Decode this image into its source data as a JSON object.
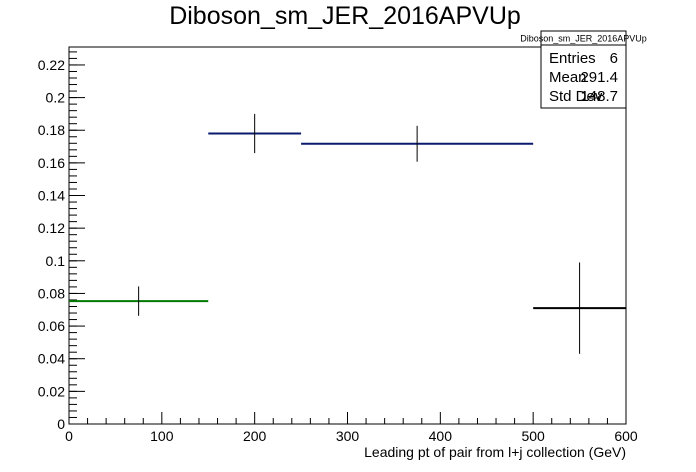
{
  "chart_data": {
    "type": "histogram",
    "title": "Diboson_sm_JER_2016APVUp",
    "xlabel": "Leading pt of pair from l+j collection (GeV)",
    "ylabel": "",
    "xlim": [
      0,
      600
    ],
    "ylim": [
      0,
      0.231
    ],
    "x_ticks": [
      0,
      100,
      200,
      300,
      400,
      500,
      600
    ],
    "y_ticks": [
      0,
      0.02,
      0.04,
      0.06,
      0.08,
      0.1,
      0.12,
      0.14,
      0.16,
      0.18,
      0.2,
      0.22
    ],
    "x_tick_labels": [
      "0",
      "100",
      "200",
      "300",
      "400",
      "500",
      "600"
    ],
    "y_tick_labels": [
      "0",
      "0.02",
      "0.04",
      "0.06",
      "0.08",
      "0.1",
      "0.12",
      "0.14",
      "0.16",
      "0.18",
      "0.2",
      "0.22"
    ],
    "bins": [
      {
        "x_low": 0,
        "x_high": 150,
        "value": 0.0753,
        "error": 0.009,
        "color": "#007a00"
      },
      {
        "x_low": 150,
        "x_high": 250,
        "value": 0.178,
        "error": 0.012,
        "color": "#0a1a6e"
      },
      {
        "x_low": 250,
        "x_high": 500,
        "value": 0.1717,
        "error": 0.011,
        "color": "#0a1a6e"
      },
      {
        "x_low": 500,
        "x_high": 600,
        "value": 0.071,
        "error": 0.028,
        "color": "#000000"
      }
    ],
    "grid": false,
    "legend": "none"
  },
  "stats_box": {
    "title": "Diboson_sm_JER_2016APVUp",
    "rows": [
      {
        "label": "Entries",
        "value": "6"
      },
      {
        "label": "Mean",
        "value": "291.4"
      },
      {
        "label": "Std Dev",
        "value": "148.7"
      }
    ]
  }
}
